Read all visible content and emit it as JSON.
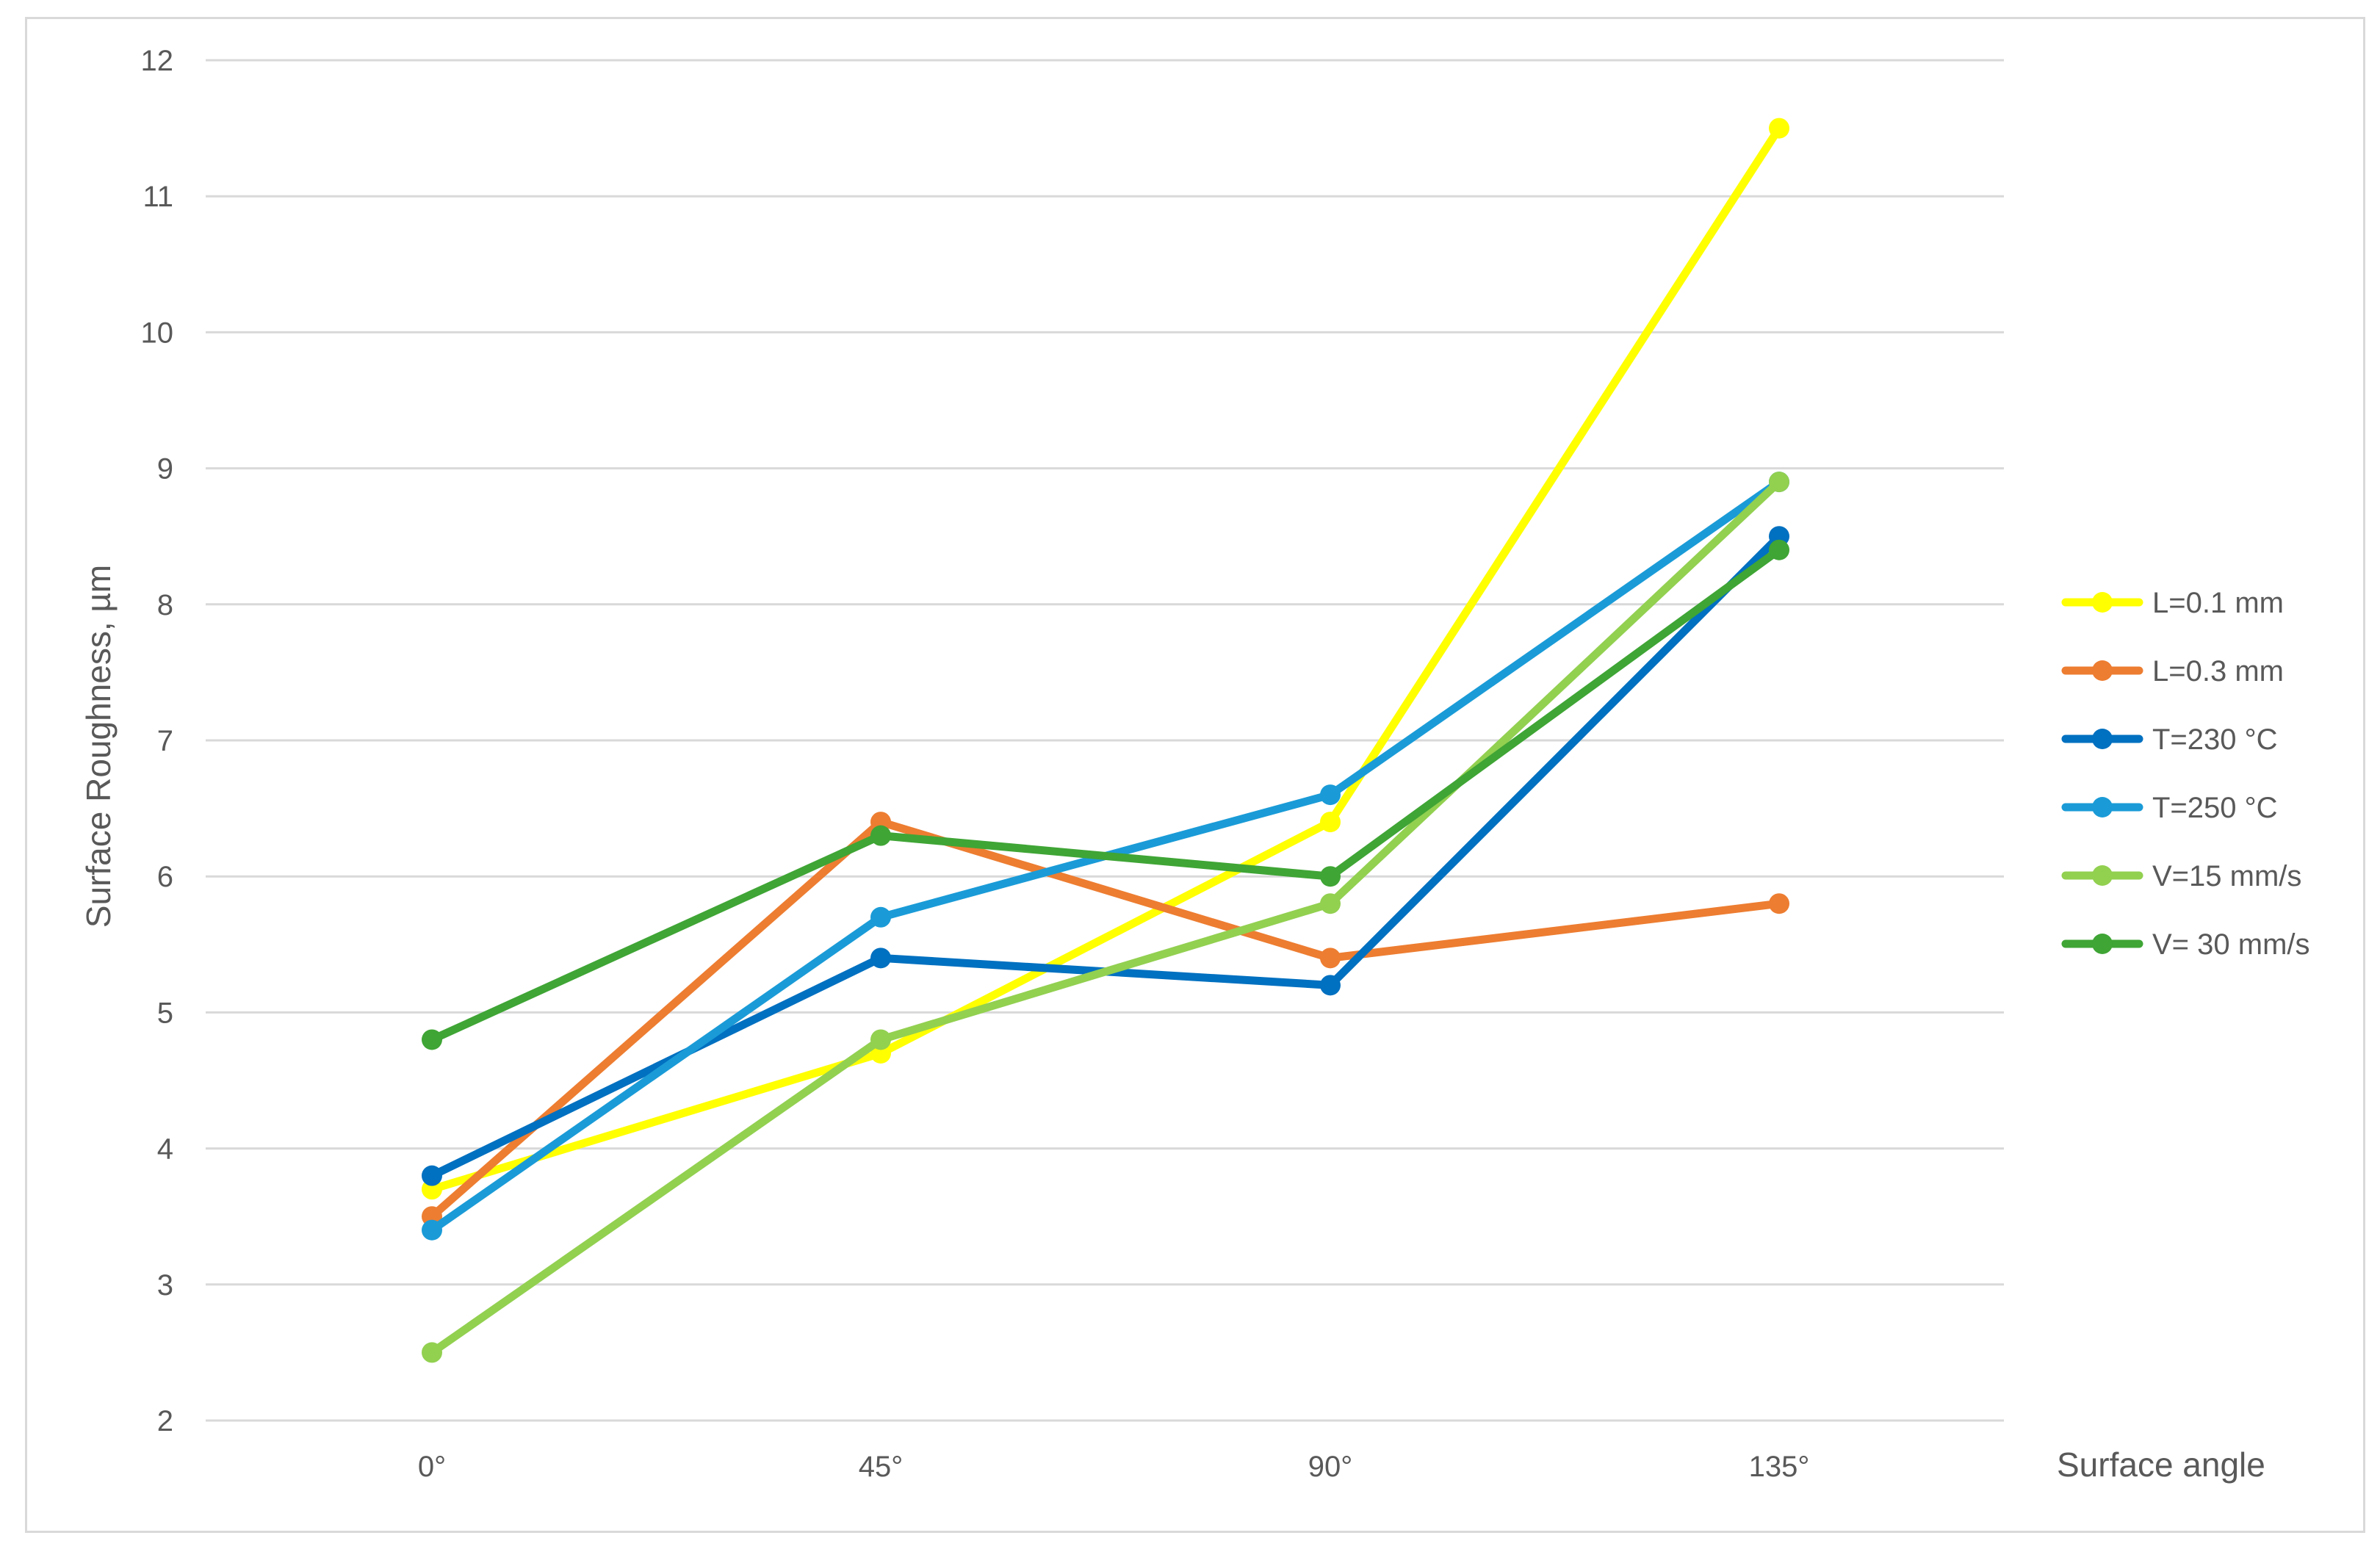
{
  "chart_data": {
    "type": "line",
    "xlabel": "Surface angle",
    "ylabel": "Surface Roughness, µm",
    "categories": [
      "0°",
      "45°",
      "90°",
      "135°"
    ],
    "ylim": [
      2,
      12
    ],
    "yticks": [
      2,
      3,
      4,
      5,
      6,
      7,
      8,
      9,
      10,
      11,
      12
    ],
    "grid": true,
    "legend_position": "right",
    "series": [
      {
        "name": "L=0.1 mm",
        "color": "#ffff00",
        "values": [
          3.7,
          4.7,
          6.4,
          11.5
        ]
      },
      {
        "name": "L=0.3 mm",
        "color": "#ed7d31",
        "values": [
          3.5,
          6.4,
          5.4,
          5.8
        ]
      },
      {
        "name": "T=230 °C",
        "color": "#0070c0",
        "values": [
          3.8,
          5.4,
          5.2,
          8.5
        ]
      },
      {
        "name": "T=250 °C",
        "color": "#1a9bd7",
        "values": [
          3.4,
          5.7,
          6.6,
          8.9
        ]
      },
      {
        "name": "V=15 mm/s",
        "color": "#92d050",
        "values": [
          2.5,
          4.8,
          5.8,
          8.9
        ]
      },
      {
        "name": "V= 30 mm/s",
        "color": "#3fa535",
        "values": [
          4.8,
          6.3,
          6.0,
          8.4
        ]
      }
    ]
  }
}
